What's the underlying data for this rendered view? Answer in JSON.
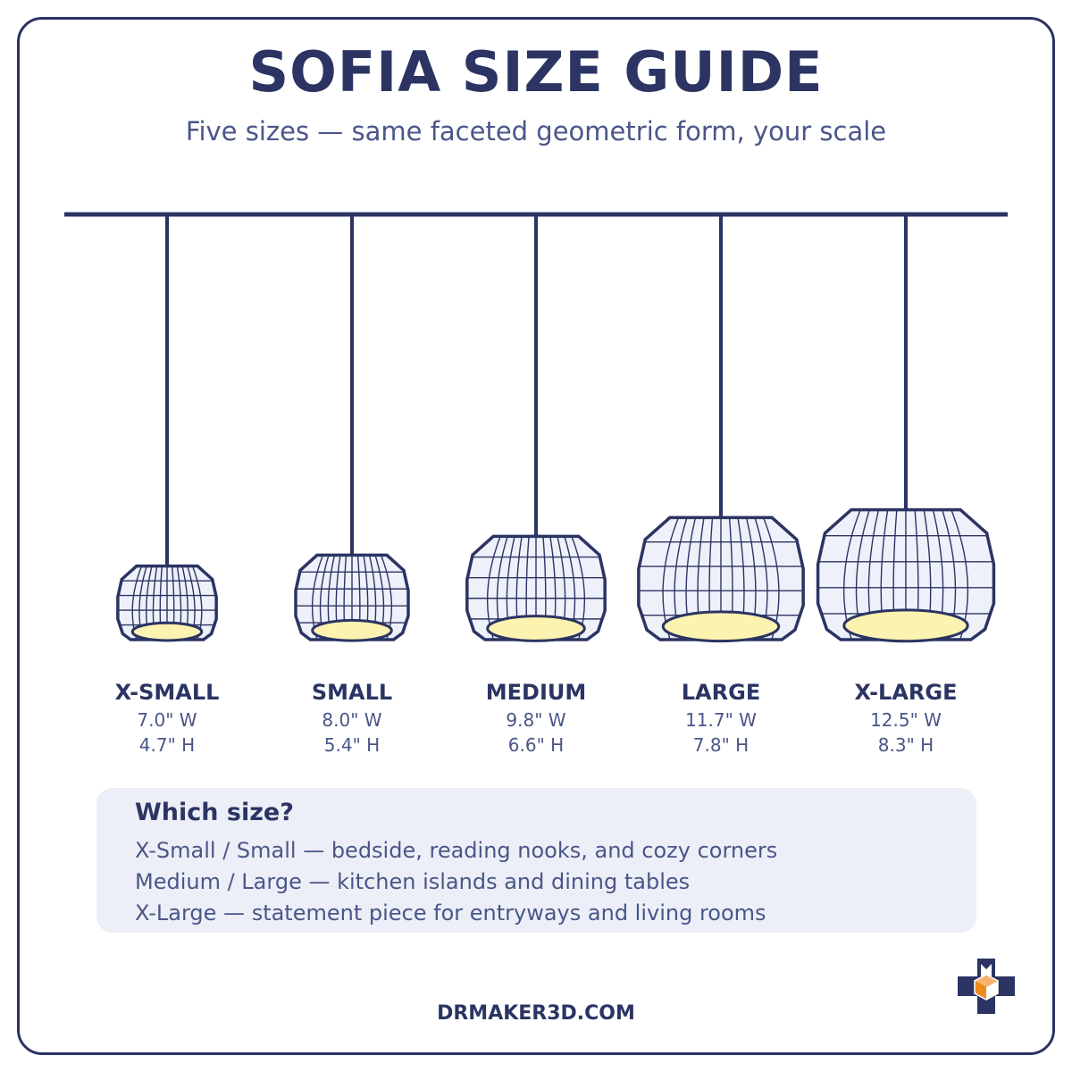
{
  "title": "SOFIA SIZE GUIDE",
  "subtitle": "Five sizes — same faceted geometric form, your scale",
  "colors": {
    "navy": "#2b3463",
    "text_muted": "#4a5688",
    "shade_fill": "#eef1fa",
    "bulb_glow": "#fdf3b0",
    "panel": "#eceff7",
    "logo_orange": "#f08a1c"
  },
  "sizes": [
    {
      "name": "X-SMALL",
      "width": "7.0\" W",
      "height": "4.7\" H",
      "width_in": 7.0,
      "height_in": 4.7
    },
    {
      "name": "SMALL",
      "width": "8.0\" W",
      "height": "5.4\" H",
      "width_in": 8.0,
      "height_in": 5.4
    },
    {
      "name": "MEDIUM",
      "width": "9.8\" W",
      "height": "6.6\" H",
      "width_in": 9.8,
      "height_in": 6.6
    },
    {
      "name": "LARGE",
      "width": "11.7\" W",
      "height": "7.8\" H",
      "width_in": 11.7,
      "height_in": 7.8
    },
    {
      "name": "X-LARGE",
      "width": "12.5\" W",
      "height": "8.3\" H",
      "width_in": 12.5,
      "height_in": 8.3
    }
  ],
  "guide": {
    "heading": "Which size?",
    "lines": [
      "X-Small / Small — bedside, reading nooks, and cozy corners",
      "Medium / Large — kitchen islands and dining tables",
      "X-Large — statement piece for entryways and living rooms"
    ]
  },
  "footer": "DRMAKER3D.COM",
  "icons": {
    "logo": "cube-cross-logo-icon"
  }
}
